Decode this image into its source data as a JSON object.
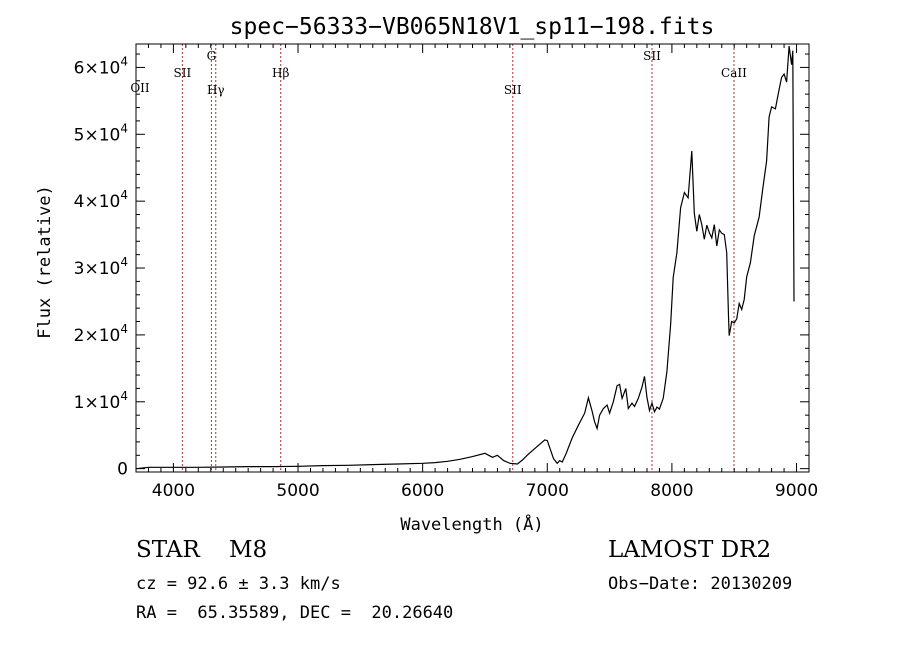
{
  "chart_data": {
    "type": "line",
    "title": "spec−56333−VB065N18V1_sp11−198.fits",
    "xlabel": "Wavelength (Å)",
    "ylabel": "Flux (relative)",
    "xlim": [
      3700,
      9100
    ],
    "ylim": [
      -500,
      63500
    ],
    "x_ticks": [
      4000,
      5000,
      6000,
      7000,
      8000,
      9000
    ],
    "x_tick_labels": [
      "4000",
      "5000",
      "6000",
      "7000",
      "8000",
      "9000"
    ],
    "y_ticks": [
      0,
      10000,
      20000,
      30000,
      40000,
      50000,
      60000
    ],
    "y_tick_labels": [
      {
        "mant": "0",
        "exp": ""
      },
      {
        "mant": "1×10",
        "exp": "4"
      },
      {
        "mant": "2×10",
        "exp": "4"
      },
      {
        "mant": "3×10",
        "exp": "4"
      },
      {
        "mant": "4×10",
        "exp": "4"
      },
      {
        "mant": "5×10",
        "exp": "4"
      },
      {
        "mant": "6×10",
        "exp": "4"
      }
    ],
    "grid": false,
    "series": [
      {
        "color": "#000000",
        "x": [
          3700,
          3800,
          4000,
          4200,
          4400,
          4600,
          4800,
          5000,
          5200,
          5400,
          5600,
          5800,
          6000,
          6100,
          6200,
          6300,
          6400,
          6500,
          6560,
          6600,
          6650,
          6700,
          6760,
          6800,
          6850,
          6900,
          6950,
          6980,
          7000,
          7030,
          7050,
          7080,
          7100,
          7120,
          7150,
          7200,
          7250,
          7300,
          7330,
          7360,
          7380,
          7400,
          7420,
          7450,
          7480,
          7500,
          7530,
          7560,
          7580,
          7600,
          7630,
          7650,
          7680,
          7700,
          7730,
          7760,
          7780,
          7800,
          7820,
          7840,
          7860,
          7880,
          7900,
          7930,
          7960,
          7990,
          8010,
          8040,
          8070,
          8100,
          8130,
          8160,
          8180,
          8200,
          8220,
          8240,
          8260,
          8280,
          8300,
          8320,
          8340,
          8360,
          8380,
          8400,
          8420,
          8440,
          8455,
          8460,
          8480,
          8500,
          8520,
          8540,
          8560,
          8580,
          8600,
          8630,
          8660,
          8700,
          8730,
          8760,
          8780,
          8800,
          8830,
          8860,
          8880,
          8900,
          8920,
          8940,
          8960,
          8970,
          8980
        ],
        "y": [
          0,
          200,
          200,
          200,
          250,
          300,
          300,
          350,
          450,
          500,
          600,
          700,
          800,
          900,
          1100,
          1400,
          1800,
          2300,
          1700,
          2000,
          1200,
          800,
          700,
          1300,
          2200,
          3000,
          3800,
          4300,
          4200,
          2600,
          1500,
          800,
          1200,
          1000,
          2200,
          4600,
          6500,
          8300,
          10600,
          8600,
          7000,
          6000,
          8000,
          9000,
          9500,
          8300,
          10000,
          12400,
          12600,
          10500,
          12000,
          9000,
          9800,
          9300,
          10500,
          12200,
          13800,
          10600,
          8700,
          9800,
          8500,
          9200,
          8900,
          10500,
          14500,
          21700,
          28600,
          32300,
          39000,
          41300,
          40500,
          47500,
          38200,
          35500,
          38000,
          36500,
          34300,
          36400,
          35300,
          34500,
          36500,
          33300,
          35700,
          35200,
          35000,
          32300,
          22300,
          19900,
          22000,
          21800,
          22400,
          24700,
          23800,
          25300,
          28700,
          30800,
          34800,
          37600,
          42000,
          46000,
          52600,
          54100,
          53800,
          56700,
          58500,
          59000,
          57800,
          63200,
          60400,
          62500,
          25000
        ]
      }
    ],
    "annotations": [
      {
        "label": "OII",
        "x": 3727
      },
      {
        "label": "SII",
        "x": 4072
      },
      {
        "label": "Hγ",
        "x": 4340
      },
      {
        "label": "G",
        "x": 4305
      },
      {
        "label": "Hβ",
        "x": 4861
      },
      {
        "label": "SII",
        "x": 6723
      },
      {
        "label": "SII",
        "x": 7840
      },
      {
        "label": "CaII",
        "x": 8498
      }
    ]
  },
  "info": {
    "class_line": "STAR    M8",
    "cz_line": "cz = 92.6 ± 3.3 km/s",
    "radec_line": "RA =  65.35589, DEC =  20.26640",
    "survey": "LAMOST DR2",
    "obs_date": "Obs−Date: 20130209"
  }
}
